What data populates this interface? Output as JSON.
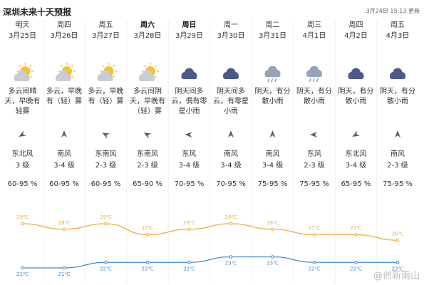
{
  "header": {
    "title": "深圳未来十天预报",
    "updated": "3月24日 15:13 更新"
  },
  "days": [
    {
      "name": "明天",
      "date": "3月25日",
      "weather": "多云间晴天，早晚有轻雾",
      "wind_dir": "东北风",
      "wind_level": "3 级",
      "humidity": "60-95 %",
      "high": 29,
      "high_label": "29℃",
      "low": 21,
      "low_label": "21℃"
    },
    {
      "name": "周四",
      "date": "3月26日",
      "weather": "多云，早晚有（轻）雾",
      "wind_dir": "南风",
      "wind_level": "3-4 级",
      "humidity": "60-95 %",
      "high": 28,
      "high_label": "28℃",
      "low": 21,
      "low_label": "21℃"
    },
    {
      "name": "周五",
      "date": "3月27日",
      "weather": "多云，早晚有（轻）雾",
      "wind_dir": "东南风",
      "wind_level": "2-3 级",
      "humidity": "60-95 %",
      "high": 29,
      "high_label": "29℃",
      "low": 22,
      "low_label": "22℃"
    },
    {
      "name": "周六",
      "date": "3月28日",
      "weather": "多云间阴天，早晚有（轻）雾",
      "wind_dir": "东南风",
      "wind_level": "2-3 级",
      "humidity": "65-90 %",
      "high": 27,
      "high_label": "27℃",
      "low": 22,
      "low_label": "22℃"
    },
    {
      "name": "周日",
      "date": "3月29日",
      "weather": "阴天间多云，偶有零星小雨",
      "wind_dir": "东风",
      "wind_level": "3-4 级",
      "humidity": "70-95 %",
      "high": 28,
      "high_label": "28℃",
      "low": 22,
      "low_label": "22℃"
    },
    {
      "name": "周一",
      "date": "3月30日",
      "weather": "阴天间多云，有零星小雨",
      "wind_dir": "南风",
      "wind_level": "3-4 级",
      "humidity": "70-95 %",
      "high": 29,
      "high_label": "29℃",
      "low": 23,
      "low_label": "23℃"
    },
    {
      "name": "周二",
      "date": "3月31日",
      "weather": "阴天，有分散小雨",
      "wind_dir": "南风",
      "wind_level": "3-4 级",
      "humidity": "75-95 %",
      "high": 28,
      "high_label": "28℃",
      "low": 23,
      "low_label": "23℃"
    },
    {
      "name": "周三",
      "date": "4月1日",
      "weather": "阴天，有分散小雨",
      "wind_dir": "东风",
      "wind_level": "2-3 级",
      "humidity": "75-95 %",
      "high": 27,
      "high_label": "27℃",
      "low": 22,
      "low_label": "22℃"
    },
    {
      "name": "周四",
      "date": "4月2日",
      "weather": "阴天，有分散小雨",
      "wind_dir": "东北风",
      "wind_level": "3-4 级",
      "humidity": "65-95 %",
      "high": 27,
      "high_label": "27℃",
      "low": 22,
      "low_label": "22℃"
    },
    {
      "name": "周五",
      "date": "4月3日",
      "weather": "阴天，有分散小雨",
      "wind_dir": "南风",
      "wind_level": "2-3 级",
      "humidity": "75-95 %",
      "high": 26,
      "high_label": "26℃",
      "low": 22,
      "low_label": "22℃"
    }
  ],
  "watermark": "@创新南山"
}
